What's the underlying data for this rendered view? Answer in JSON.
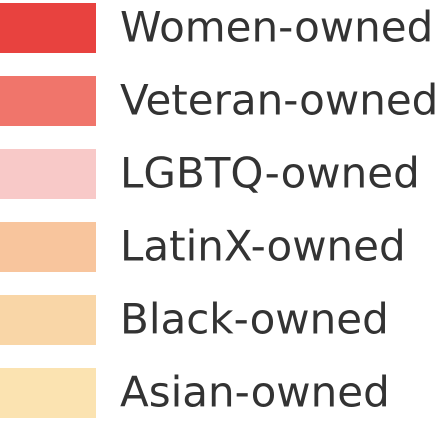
{
  "legend": {
    "items": [
      {
        "label": "Women-owned",
        "color": "#e8423f"
      },
      {
        "label": "Veteran-owned",
        "color": "#f0756b"
      },
      {
        "label": "LGBTQ-owned",
        "color": "#f8c9c8"
      },
      {
        "label": "LatinX-owned",
        "color": "#f8c59d"
      },
      {
        "label": "Black-owned",
        "color": "#f9d6a7"
      },
      {
        "label": "Asian-owned",
        "color": "#fbe3b1"
      }
    ]
  }
}
